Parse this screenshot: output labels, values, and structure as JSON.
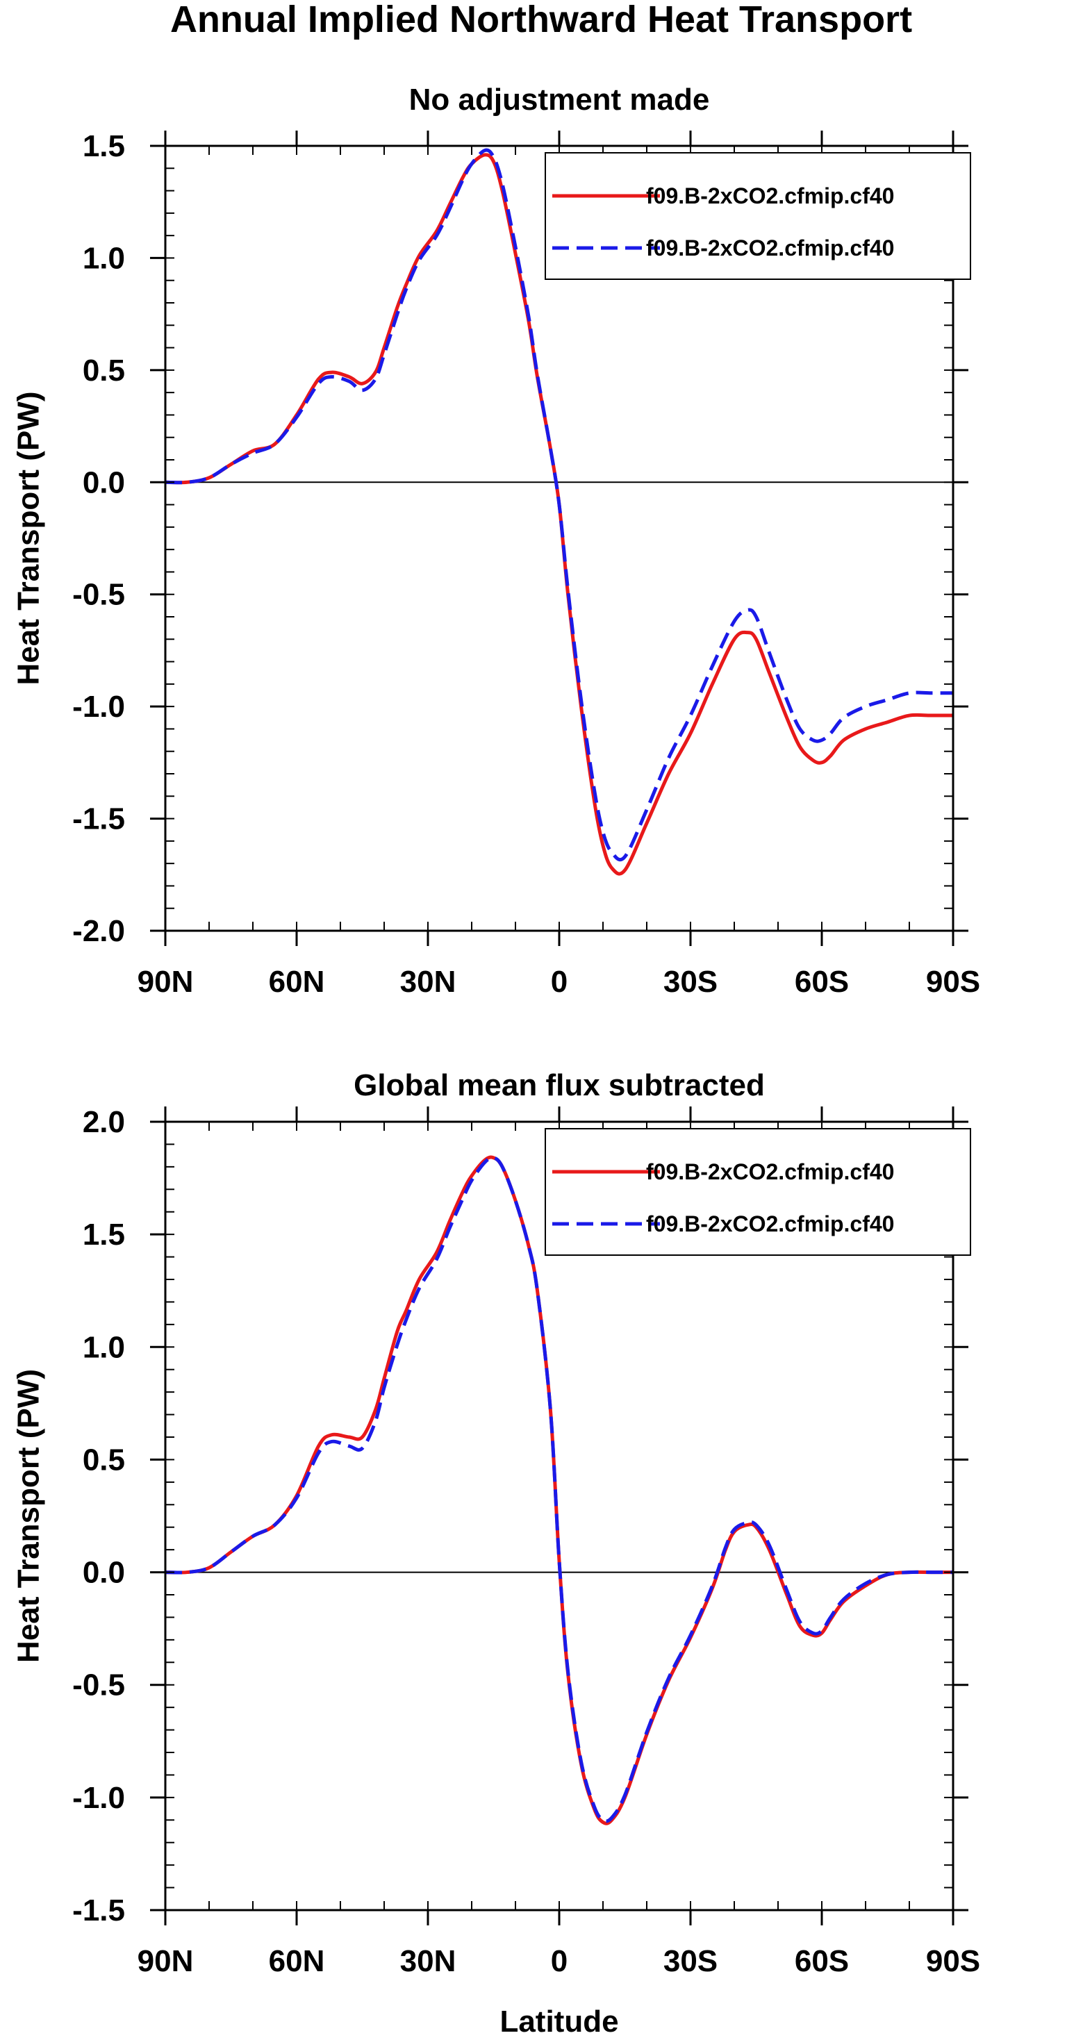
{
  "figure": {
    "title": "Annual Implied Northward Heat Transport"
  },
  "chart_data": [
    {
      "type": "line",
      "title": "No adjustment made",
      "xlabel": "",
      "ylabel": "Heat Transport (PW)",
      "xlim": [
        90,
        -90
      ],
      "ylim": [
        -2.0,
        1.5
      ],
      "x_ticks": [
        90,
        60,
        30,
        0,
        -30,
        -60,
        -90
      ],
      "x_tick_labels": [
        "90N",
        "60N",
        "30N",
        "0",
        "30S",
        "60S",
        "90S"
      ],
      "y_ticks": [
        1.5,
        1.0,
        0.5,
        0.0,
        -0.5,
        -1.0,
        -1.5,
        -2.0
      ],
      "y_tick_labels": [
        "1.5",
        "1.0",
        "0.5",
        "0.0",
        "-0.5",
        "-1.0",
        "-1.5",
        "-2.0"
      ],
      "y_minor_step": 0.1,
      "zero_line": true,
      "legend_position": "top-right",
      "series": [
        {
          "name": "f09.B-2xCO2.cfmip.cf40",
          "color": "#e8191a",
          "dash": "solid",
          "x": [
            90,
            85,
            80,
            75,
            70,
            65,
            60,
            55,
            52,
            48,
            45,
            42,
            40,
            37,
            35,
            32,
            28,
            25,
            22,
            20,
            17,
            15,
            13,
            10,
            7,
            5,
            2,
            0,
            -2,
            -5,
            -8,
            -10,
            -12,
            -15,
            -20,
            -25,
            -30,
            -35,
            -40,
            -43,
            -45,
            -48,
            -52,
            -55,
            -58,
            -60,
            -62,
            -65,
            -70,
            -75,
            -80,
            -85,
            -90
          ],
          "values": [
            0.0,
            0.0,
            0.02,
            0.08,
            0.14,
            0.17,
            0.3,
            0.46,
            0.49,
            0.47,
            0.44,
            0.49,
            0.6,
            0.78,
            0.88,
            1.01,
            1.12,
            1.24,
            1.36,
            1.42,
            1.46,
            1.43,
            1.3,
            1.02,
            0.72,
            0.47,
            0.15,
            -0.1,
            -0.5,
            -1.0,
            -1.42,
            -1.62,
            -1.72,
            -1.73,
            -1.52,
            -1.3,
            -1.12,
            -0.9,
            -0.7,
            -0.67,
            -0.7,
            -0.85,
            -1.05,
            -1.18,
            -1.24,
            -1.25,
            -1.22,
            -1.15,
            -1.1,
            -1.07,
            -1.04,
            -1.04,
            -1.04
          ]
        },
        {
          "name": "f09.B-2xCO2.cfmip.cf40",
          "color": "#1a1ae8",
          "dash": "dashed",
          "x": [
            90,
            85,
            80,
            75,
            70,
            65,
            60,
            55,
            52,
            48,
            45,
            42,
            40,
            37,
            35,
            32,
            28,
            25,
            22,
            20,
            17,
            15,
            13,
            10,
            7,
            5,
            2,
            0,
            -2,
            -5,
            -8,
            -10,
            -12,
            -15,
            -20,
            -25,
            -30,
            -35,
            -40,
            -43,
            -45,
            -48,
            -52,
            -55,
            -58,
            -60,
            -62,
            -65,
            -70,
            -75,
            -80,
            -85,
            -90
          ],
          "values": [
            0.0,
            0.0,
            0.02,
            0.08,
            0.13,
            0.17,
            0.29,
            0.44,
            0.47,
            0.45,
            0.41,
            0.46,
            0.57,
            0.75,
            0.86,
            0.99,
            1.1,
            1.22,
            1.35,
            1.42,
            1.48,
            1.45,
            1.33,
            1.05,
            0.74,
            0.48,
            0.15,
            -0.1,
            -0.48,
            -0.97,
            -1.37,
            -1.56,
            -1.65,
            -1.67,
            -1.46,
            -1.23,
            -1.04,
            -0.82,
            -0.62,
            -0.57,
            -0.6,
            -0.76,
            -0.97,
            -1.1,
            -1.15,
            -1.15,
            -1.12,
            -1.05,
            -1.0,
            -0.97,
            -0.94,
            -0.94,
            -0.94
          ]
        }
      ]
    },
    {
      "type": "line",
      "title": "Global mean flux subtracted",
      "xlabel": "Latitude",
      "ylabel": "Heat Transport (PW)",
      "xlim": [
        90,
        -90
      ],
      "ylim": [
        -1.5,
        2.0
      ],
      "x_ticks": [
        90,
        60,
        30,
        0,
        -30,
        -60,
        -90
      ],
      "x_tick_labels": [
        "90N",
        "60N",
        "30N",
        "0",
        "30S",
        "60S",
        "90S"
      ],
      "y_ticks": [
        2.0,
        1.5,
        1.0,
        0.5,
        0.0,
        -0.5,
        -1.0,
        -1.5
      ],
      "y_tick_labels": [
        "2.0",
        "1.5",
        "1.0",
        "0.5",
        "0.0",
        "-0.5",
        "-1.0",
        "-1.5"
      ],
      "y_minor_step": 0.1,
      "zero_line": true,
      "legend_position": "top-right",
      "series": [
        {
          "name": "f09.B-2xCO2.cfmip.cf40",
          "color": "#e8191a",
          "dash": "solid",
          "x": [
            90,
            85,
            80,
            75,
            70,
            65,
            60,
            55,
            52,
            48,
            45,
            42,
            40,
            37,
            35,
            32,
            28,
            25,
            22,
            20,
            17,
            15,
            13,
            10,
            7,
            5,
            2,
            0,
            -2,
            -5,
            -8,
            -10,
            -12,
            -15,
            -20,
            -25,
            -30,
            -35,
            -38,
            -40,
            -43,
            -45,
            -48,
            -52,
            -55,
            -58,
            -60,
            -62,
            -65,
            -70,
            -75,
            -80,
            -85,
            -90
          ],
          "values": [
            0.0,
            0.0,
            0.02,
            0.09,
            0.16,
            0.21,
            0.34,
            0.56,
            0.61,
            0.6,
            0.6,
            0.72,
            0.86,
            1.07,
            1.16,
            1.3,
            1.42,
            1.56,
            1.69,
            1.76,
            1.83,
            1.84,
            1.8,
            1.65,
            1.45,
            1.25,
            0.72,
            0.05,
            -0.45,
            -0.85,
            -1.05,
            -1.11,
            -1.1,
            -1.0,
            -0.72,
            -0.48,
            -0.29,
            -0.07,
            0.1,
            0.18,
            0.21,
            0.2,
            0.1,
            -0.1,
            -0.24,
            -0.28,
            -0.27,
            -0.21,
            -0.13,
            -0.06,
            -0.01,
            0.0,
            0.0,
            0.0
          ]
        },
        {
          "name": "f09.B-2xCO2.cfmip.cf40",
          "color": "#1a1ae8",
          "dash": "dashed",
          "x": [
            90,
            85,
            80,
            75,
            70,
            65,
            60,
            55,
            52,
            48,
            45,
            42,
            40,
            37,
            35,
            32,
            28,
            25,
            22,
            20,
            17,
            15,
            13,
            10,
            7,
            5,
            2,
            0,
            -2,
            -5,
            -8,
            -10,
            -12,
            -15,
            -20,
            -25,
            -30,
            -35,
            -38,
            -40,
            -43,
            -45,
            -48,
            -52,
            -55,
            -58,
            -60,
            -62,
            -65,
            -70,
            -75,
            -80,
            -85,
            -90
          ],
          "values": [
            0.0,
            0.0,
            0.02,
            0.09,
            0.16,
            0.21,
            0.33,
            0.53,
            0.58,
            0.56,
            0.55,
            0.67,
            0.82,
            1.01,
            1.12,
            1.26,
            1.39,
            1.53,
            1.66,
            1.74,
            1.82,
            1.84,
            1.8,
            1.65,
            1.45,
            1.25,
            0.72,
            0.05,
            -0.44,
            -0.84,
            -1.04,
            -1.1,
            -1.09,
            -0.99,
            -0.71,
            -0.47,
            -0.28,
            -0.06,
            0.11,
            0.19,
            0.22,
            0.21,
            0.12,
            -0.08,
            -0.22,
            -0.27,
            -0.26,
            -0.2,
            -0.12,
            -0.05,
            -0.01,
            0.0,
            0.0,
            0.0
          ]
        }
      ]
    }
  ]
}
